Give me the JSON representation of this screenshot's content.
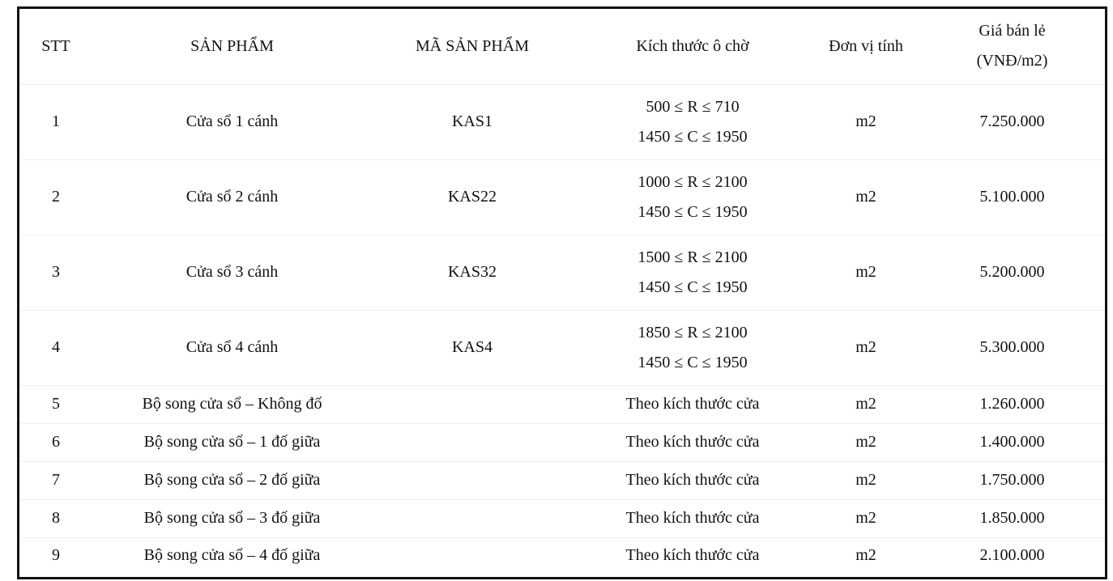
{
  "table": {
    "headers": {
      "stt": "STT",
      "product": "SẢN PHẨM",
      "code": "MÃ SẢN PHẨM",
      "size": "Kích thước ô chờ",
      "unit": "Đơn vị tính",
      "price_line1": "Giá bán lẻ",
      "price_line2": "(VNĐ/m2)"
    },
    "rows": [
      {
        "stt": "1",
        "product": "Cửa sổ 1 cánh",
        "code": "KAS1",
        "size_line1": "500 ≤ R ≤ 710",
        "size_line2": "1450 ≤ C ≤ 1950",
        "unit": "m2",
        "price": "7.250.000"
      },
      {
        "stt": "2",
        "product": "Cửa sổ 2 cánh",
        "code": "KAS22",
        "size_line1": "1000 ≤ R ≤ 2100",
        "size_line2": "1450 ≤ C ≤ 1950",
        "unit": "m2",
        "price": "5.100.000"
      },
      {
        "stt": "3",
        "product": "Cửa sổ 3 cánh",
        "code": "KAS32",
        "size_line1": "1500 ≤ R ≤ 2100",
        "size_line2": "1450 ≤ C ≤ 1950",
        "unit": "m2",
        "price": "5.200.000"
      },
      {
        "stt": "4",
        "product": "Cửa sổ 4 cánh",
        "code": "KAS4",
        "size_line1": "1850 ≤ R ≤ 2100",
        "size_line2": "1450 ≤ C ≤ 1950",
        "unit": "m2",
        "price": "5.300.000"
      },
      {
        "stt": "5",
        "product": "Bộ song cửa sổ – Không đố",
        "code": "",
        "size_line1": "Theo kích thước cửa",
        "unit": "m2",
        "price": "1.260.000"
      },
      {
        "stt": "6",
        "product": "Bộ song cửa sổ – 1 đố giữa",
        "code": "",
        "size_line1": "Theo kích thước cửa",
        "unit": "m2",
        "price": "1.400.000"
      },
      {
        "stt": "7",
        "product": "Bộ song cửa sổ – 2 đố giữa",
        "code": "",
        "size_line1": "Theo kích thước cửa",
        "unit": "m2",
        "price": "1.750.000"
      },
      {
        "stt": "8",
        "product": "Bộ song cửa sổ – 3 đố giữa",
        "code": "",
        "size_line1": "Theo kích thước cửa",
        "unit": "m2",
        "price": "1.850.000"
      },
      {
        "stt": "9",
        "product": "Bộ song cửa sổ – 4 đố giữa",
        "code": "",
        "size_line1": "Theo kích thước cửa",
        "unit": "m2",
        "price": "2.100.000"
      }
    ]
  }
}
